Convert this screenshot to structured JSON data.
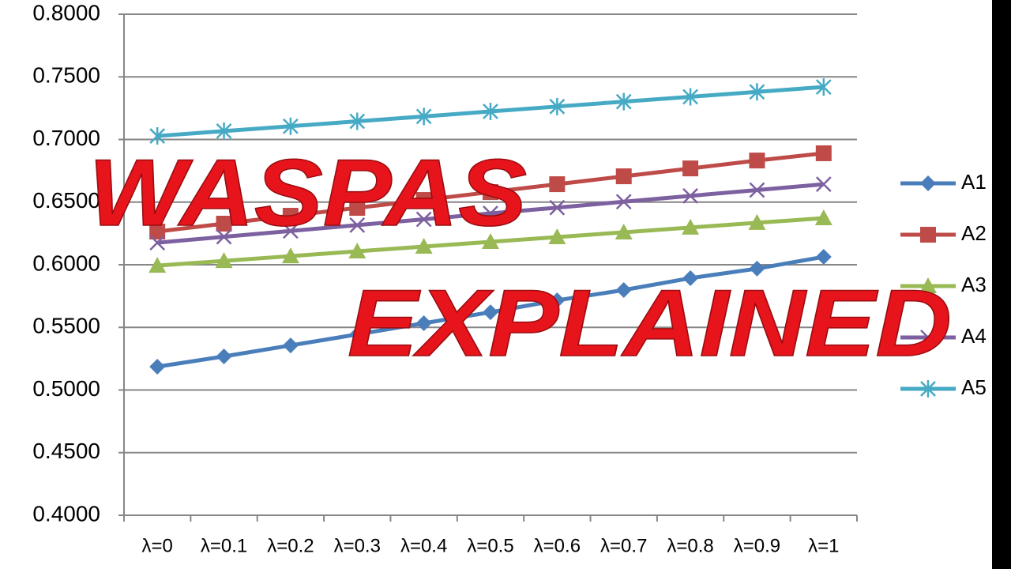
{
  "chart_data": {
    "type": "line",
    "categories": [
      "λ=0",
      "λ=0.1",
      "λ=0.2",
      "λ=0.3",
      "λ=0.4",
      "λ=0.5",
      "λ=0.6",
      "λ=0.7",
      "λ=0.8",
      "λ=0.9",
      "λ=1"
    ],
    "series": [
      {
        "name": "A1",
        "color": "#4a7ebb",
        "marker": "diamond",
        "values": [
          0.5186,
          0.5268,
          0.5356,
          0.5444,
          0.5533,
          0.5621,
          0.5716,
          0.5798,
          0.5893,
          0.5969,
          0.6063
        ]
      },
      {
        "name": "A2",
        "color": "#be4b48",
        "marker": "square",
        "values": [
          0.6265,
          0.6328,
          0.6391,
          0.6454,
          0.6517,
          0.658,
          0.6643,
          0.6706,
          0.6769,
          0.6832,
          0.689
        ]
      },
      {
        "name": "A3",
        "color": "#98b954",
        "marker": "triangle",
        "values": [
          0.5993,
          0.6031,
          0.6069,
          0.6107,
          0.6145,
          0.6183,
          0.6221,
          0.6259,
          0.6297,
          0.6335,
          0.6372
        ]
      },
      {
        "name": "A4",
        "color": "#7d60a0",
        "marker": "x",
        "values": [
          0.6176,
          0.6223,
          0.627,
          0.6316,
          0.6363,
          0.641,
          0.6456,
          0.6503,
          0.655,
          0.6596,
          0.6643
        ]
      },
      {
        "name": "A5",
        "color": "#46aac5",
        "marker": "star",
        "values": [
          0.7028,
          0.7067,
          0.7106,
          0.7145,
          0.7184,
          0.7224,
          0.7263,
          0.7302,
          0.7341,
          0.738,
          0.7419
        ]
      }
    ],
    "ylim": [
      0.4,
      0.8
    ],
    "yticks": [
      {
        "value": 0.4,
        "label": "0.4000"
      },
      {
        "value": 0.45,
        "label": "0.4500"
      },
      {
        "value": 0.5,
        "label": "0.5000"
      },
      {
        "value": 0.55,
        "label": "0.5500"
      },
      {
        "value": 0.6,
        "label": "0.6000"
      },
      {
        "value": 0.65,
        "label": "0.6500"
      },
      {
        "value": 0.7,
        "label": "0.7000"
      },
      {
        "value": 0.75,
        "label": "0.7500"
      },
      {
        "value": 0.8,
        "label": "0.8000"
      }
    ],
    "grid": true,
    "legend": "right",
    "annotations": [
      "WASPAS",
      "EXPLAINED"
    ]
  }
}
